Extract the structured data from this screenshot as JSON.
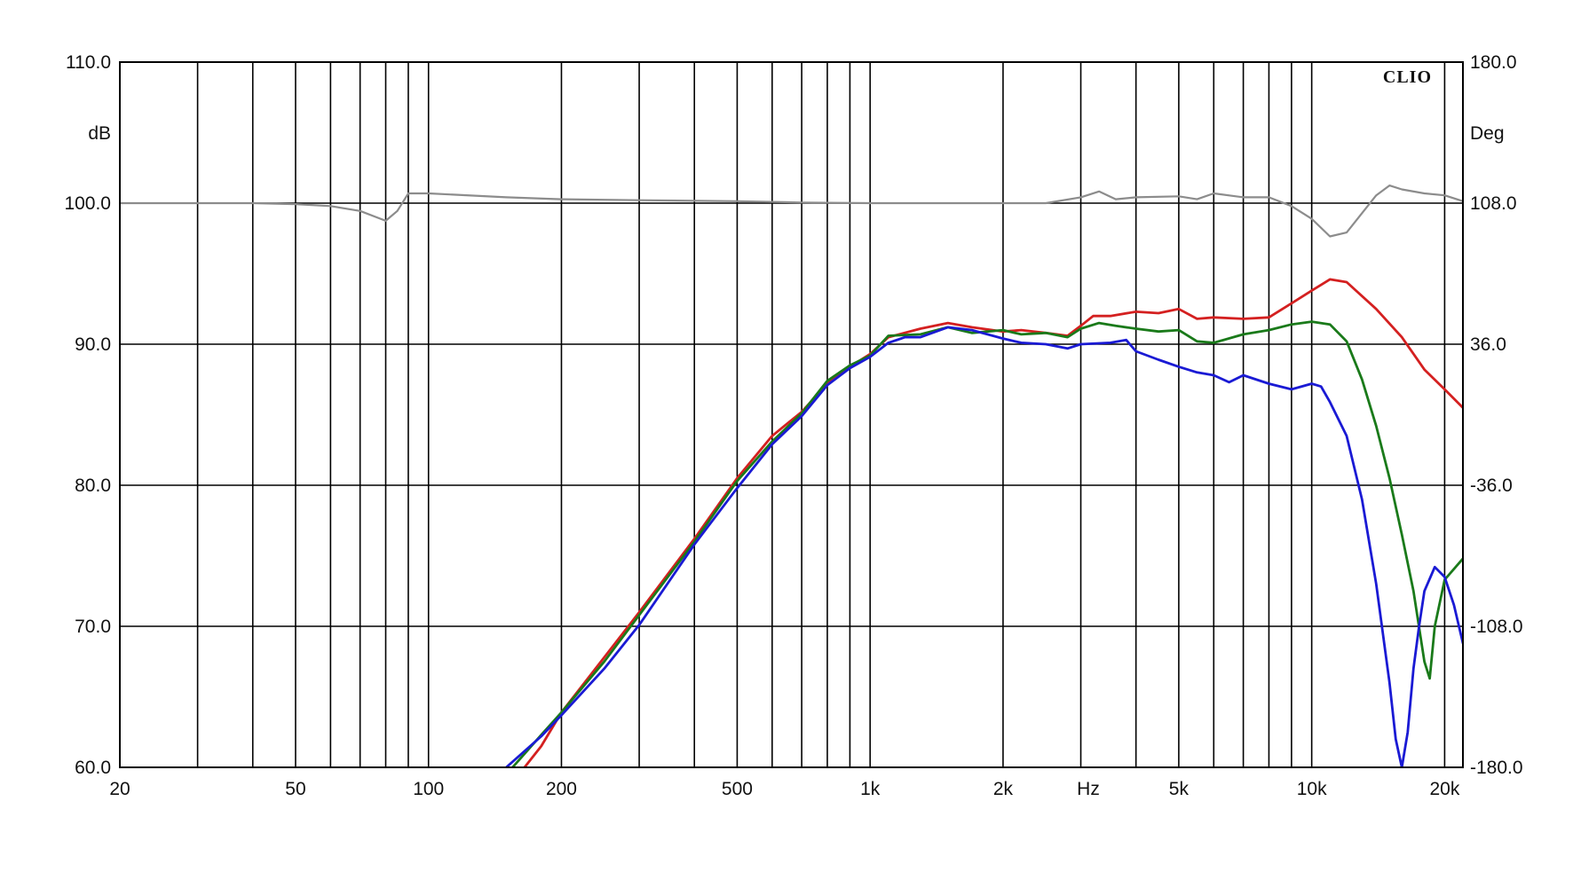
{
  "chart_data": {
    "type": "line",
    "xscale": "log",
    "xlim": [
      20,
      22000
    ],
    "ylim": [
      60,
      110
    ],
    "y2lim": [
      -180,
      180
    ],
    "grid": true,
    "xlabel": "Hz",
    "ylabel": "dB",
    "y2label": "Deg",
    "brand": "CLIO",
    "x_tick_labels": [
      {
        "value": 20,
        "label": "20"
      },
      {
        "value": 50,
        "label": "50"
      },
      {
        "value": 100,
        "label": "100"
      },
      {
        "value": 200,
        "label": "200"
      },
      {
        "value": 500,
        "label": "500"
      },
      {
        "value": 1000,
        "label": "1k"
      },
      {
        "value": 2000,
        "label": "2k"
      },
      {
        "value": 5000,
        "label": "5k"
      },
      {
        "value": 10000,
        "label": "10k"
      },
      {
        "value": 20000,
        "label": "20k"
      }
    ],
    "y_ticks": [
      {
        "value": 60,
        "label": "60.0"
      },
      {
        "value": 70,
        "label": "70.0"
      },
      {
        "value": 80,
        "label": "80.0"
      },
      {
        "value": 90,
        "label": "90.0"
      },
      {
        "value": 100,
        "label": "100.0"
      },
      {
        "value": 110,
        "label": "110.0"
      }
    ],
    "y2_ticks": [
      {
        "value": -180,
        "label": "-180.0"
      },
      {
        "value": -108,
        "label": "-108.0"
      },
      {
        "value": -36,
        "label": "-36.0"
      },
      {
        "value": 36,
        "label": "36.0"
      },
      {
        "value": 108,
        "label": "108.0"
      },
      {
        "value": 180,
        "label": "180.0"
      }
    ],
    "series": [
      {
        "color": "#d42020",
        "axis": "left",
        "points": [
          [
            165,
            60
          ],
          [
            180,
            61.5
          ],
          [
            200,
            63.9
          ],
          [
            250,
            67.8
          ],
          [
            300,
            71
          ],
          [
            400,
            76.2
          ],
          [
            500,
            80.5
          ],
          [
            600,
            83.5
          ],
          [
            700,
            85.2
          ],
          [
            800,
            87.2
          ],
          [
            900,
            88.4
          ],
          [
            1000,
            89.3
          ],
          [
            1100,
            90.5
          ],
          [
            1300,
            91.1
          ],
          [
            1500,
            91.5
          ],
          [
            1700,
            91.2
          ],
          [
            2000,
            90.9
          ],
          [
            2200,
            91
          ],
          [
            2500,
            90.8
          ],
          [
            2800,
            90.6
          ],
          [
            3000,
            91.3
          ],
          [
            3200,
            92
          ],
          [
            3500,
            92
          ],
          [
            4000,
            92.3
          ],
          [
            4500,
            92.2
          ],
          [
            5000,
            92.5
          ],
          [
            5500,
            91.8
          ],
          [
            6000,
            91.9
          ],
          [
            7000,
            91.8
          ],
          [
            8000,
            91.9
          ],
          [
            9000,
            92.9
          ],
          [
            10000,
            93.8
          ],
          [
            11000,
            94.6
          ],
          [
            12000,
            94.4
          ],
          [
            14000,
            92.5
          ],
          [
            16000,
            90.5
          ],
          [
            18000,
            88.2
          ],
          [
            20000,
            86.8
          ],
          [
            22000,
            85.5
          ]
        ]
      },
      {
        "color": "#1a7a1a",
        "axis": "left",
        "points": [
          [
            155,
            60
          ],
          [
            180,
            62.3
          ],
          [
            200,
            63.9
          ],
          [
            250,
            67.5
          ],
          [
            300,
            70.8
          ],
          [
            400,
            76
          ],
          [
            500,
            80.3
          ],
          [
            600,
            83.1
          ],
          [
            700,
            85.1
          ],
          [
            800,
            87.4
          ],
          [
            900,
            88.5
          ],
          [
            1000,
            89.2
          ],
          [
            1100,
            90.6
          ],
          [
            1300,
            90.7
          ],
          [
            1500,
            91.2
          ],
          [
            1700,
            90.8
          ],
          [
            2000,
            91
          ],
          [
            2200,
            90.7
          ],
          [
            2500,
            90.8
          ],
          [
            2800,
            90.5
          ],
          [
            3000,
            91.1
          ],
          [
            3300,
            91.5
          ],
          [
            3600,
            91.3
          ],
          [
            4000,
            91.1
          ],
          [
            4500,
            90.9
          ],
          [
            5000,
            91
          ],
          [
            5500,
            90.2
          ],
          [
            6000,
            90.1
          ],
          [
            7000,
            90.7
          ],
          [
            8000,
            91
          ],
          [
            9000,
            91.4
          ],
          [
            10000,
            91.6
          ],
          [
            11000,
            91.4
          ],
          [
            12000,
            90.2
          ],
          [
            13000,
            87.5
          ],
          [
            14000,
            84.2
          ],
          [
            15000,
            80.5
          ],
          [
            16000,
            76.5
          ],
          [
            17000,
            72.5
          ],
          [
            18000,
            67.5
          ],
          [
            18500,
            66.3
          ],
          [
            19000,
            70
          ],
          [
            20000,
            73.3
          ],
          [
            22000,
            74.8
          ]
        ]
      },
      {
        "color": "#1a1ad4",
        "axis": "left",
        "points": [
          [
            150,
            60
          ],
          [
            180,
            62.2
          ],
          [
            200,
            63.7
          ],
          [
            250,
            67
          ],
          [
            300,
            70.1
          ],
          [
            400,
            75.8
          ],
          [
            500,
            79.8
          ],
          [
            600,
            82.9
          ],
          [
            700,
            84.9
          ],
          [
            800,
            87.1
          ],
          [
            900,
            88.3
          ],
          [
            1000,
            89.1
          ],
          [
            1100,
            90.1
          ],
          [
            1200,
            90.5
          ],
          [
            1300,
            90.5
          ],
          [
            1500,
            91.2
          ],
          [
            1700,
            91
          ],
          [
            2000,
            90.4
          ],
          [
            2200,
            90.1
          ],
          [
            2500,
            90
          ],
          [
            2800,
            89.7
          ],
          [
            3000,
            90
          ],
          [
            3500,
            90.1
          ],
          [
            3800,
            90.3
          ],
          [
            4000,
            89.5
          ],
          [
            4500,
            88.9
          ],
          [
            5000,
            88.4
          ],
          [
            5500,
            88
          ],
          [
            6000,
            87.8
          ],
          [
            6500,
            87.3
          ],
          [
            7000,
            87.8
          ],
          [
            8000,
            87.2
          ],
          [
            9000,
            86.8
          ],
          [
            10000,
            87.2
          ],
          [
            10500,
            87
          ],
          [
            11000,
            85.9
          ],
          [
            12000,
            83.5
          ],
          [
            13000,
            79
          ],
          [
            14000,
            73
          ],
          [
            15000,
            66
          ],
          [
            15500,
            62
          ],
          [
            16000,
            60
          ],
          [
            16500,
            62.5
          ],
          [
            17000,
            67
          ],
          [
            17500,
            70
          ],
          [
            18000,
            72.5
          ],
          [
            19000,
            74.2
          ],
          [
            20000,
            73.5
          ],
          [
            21000,
            71.5
          ],
          [
            22000,
            68.8
          ]
        ]
      },
      {
        "color": "#8c8c8c",
        "axis": "right",
        "points": [
          [
            20,
            108
          ],
          [
            40,
            108
          ],
          [
            50,
            107.5
          ],
          [
            60,
            106.5
          ],
          [
            70,
            104
          ],
          [
            80,
            99
          ],
          [
            85,
            104
          ],
          [
            90,
            113
          ],
          [
            100,
            113
          ],
          [
            150,
            111
          ],
          [
            200,
            110
          ],
          [
            300,
            109.5
          ],
          [
            500,
            109
          ],
          [
            700,
            108.3
          ],
          [
            1000,
            108
          ],
          [
            1500,
            108
          ],
          [
            2000,
            108
          ],
          [
            2500,
            108
          ],
          [
            3000,
            111
          ],
          [
            3300,
            114
          ],
          [
            3600,
            110
          ],
          [
            4000,
            111
          ],
          [
            5000,
            111.5
          ],
          [
            5500,
            110
          ],
          [
            6000,
            113
          ],
          [
            7000,
            111
          ],
          [
            8000,
            111
          ],
          [
            9000,
            106.5
          ],
          [
            10000,
            100
          ],
          [
            11000,
            91
          ],
          [
            12000,
            93
          ],
          [
            14000,
            112
          ],
          [
            15000,
            117
          ],
          [
            16000,
            115
          ],
          [
            18000,
            113
          ],
          [
            20000,
            112
          ],
          [
            22000,
            109
          ]
        ]
      }
    ]
  }
}
